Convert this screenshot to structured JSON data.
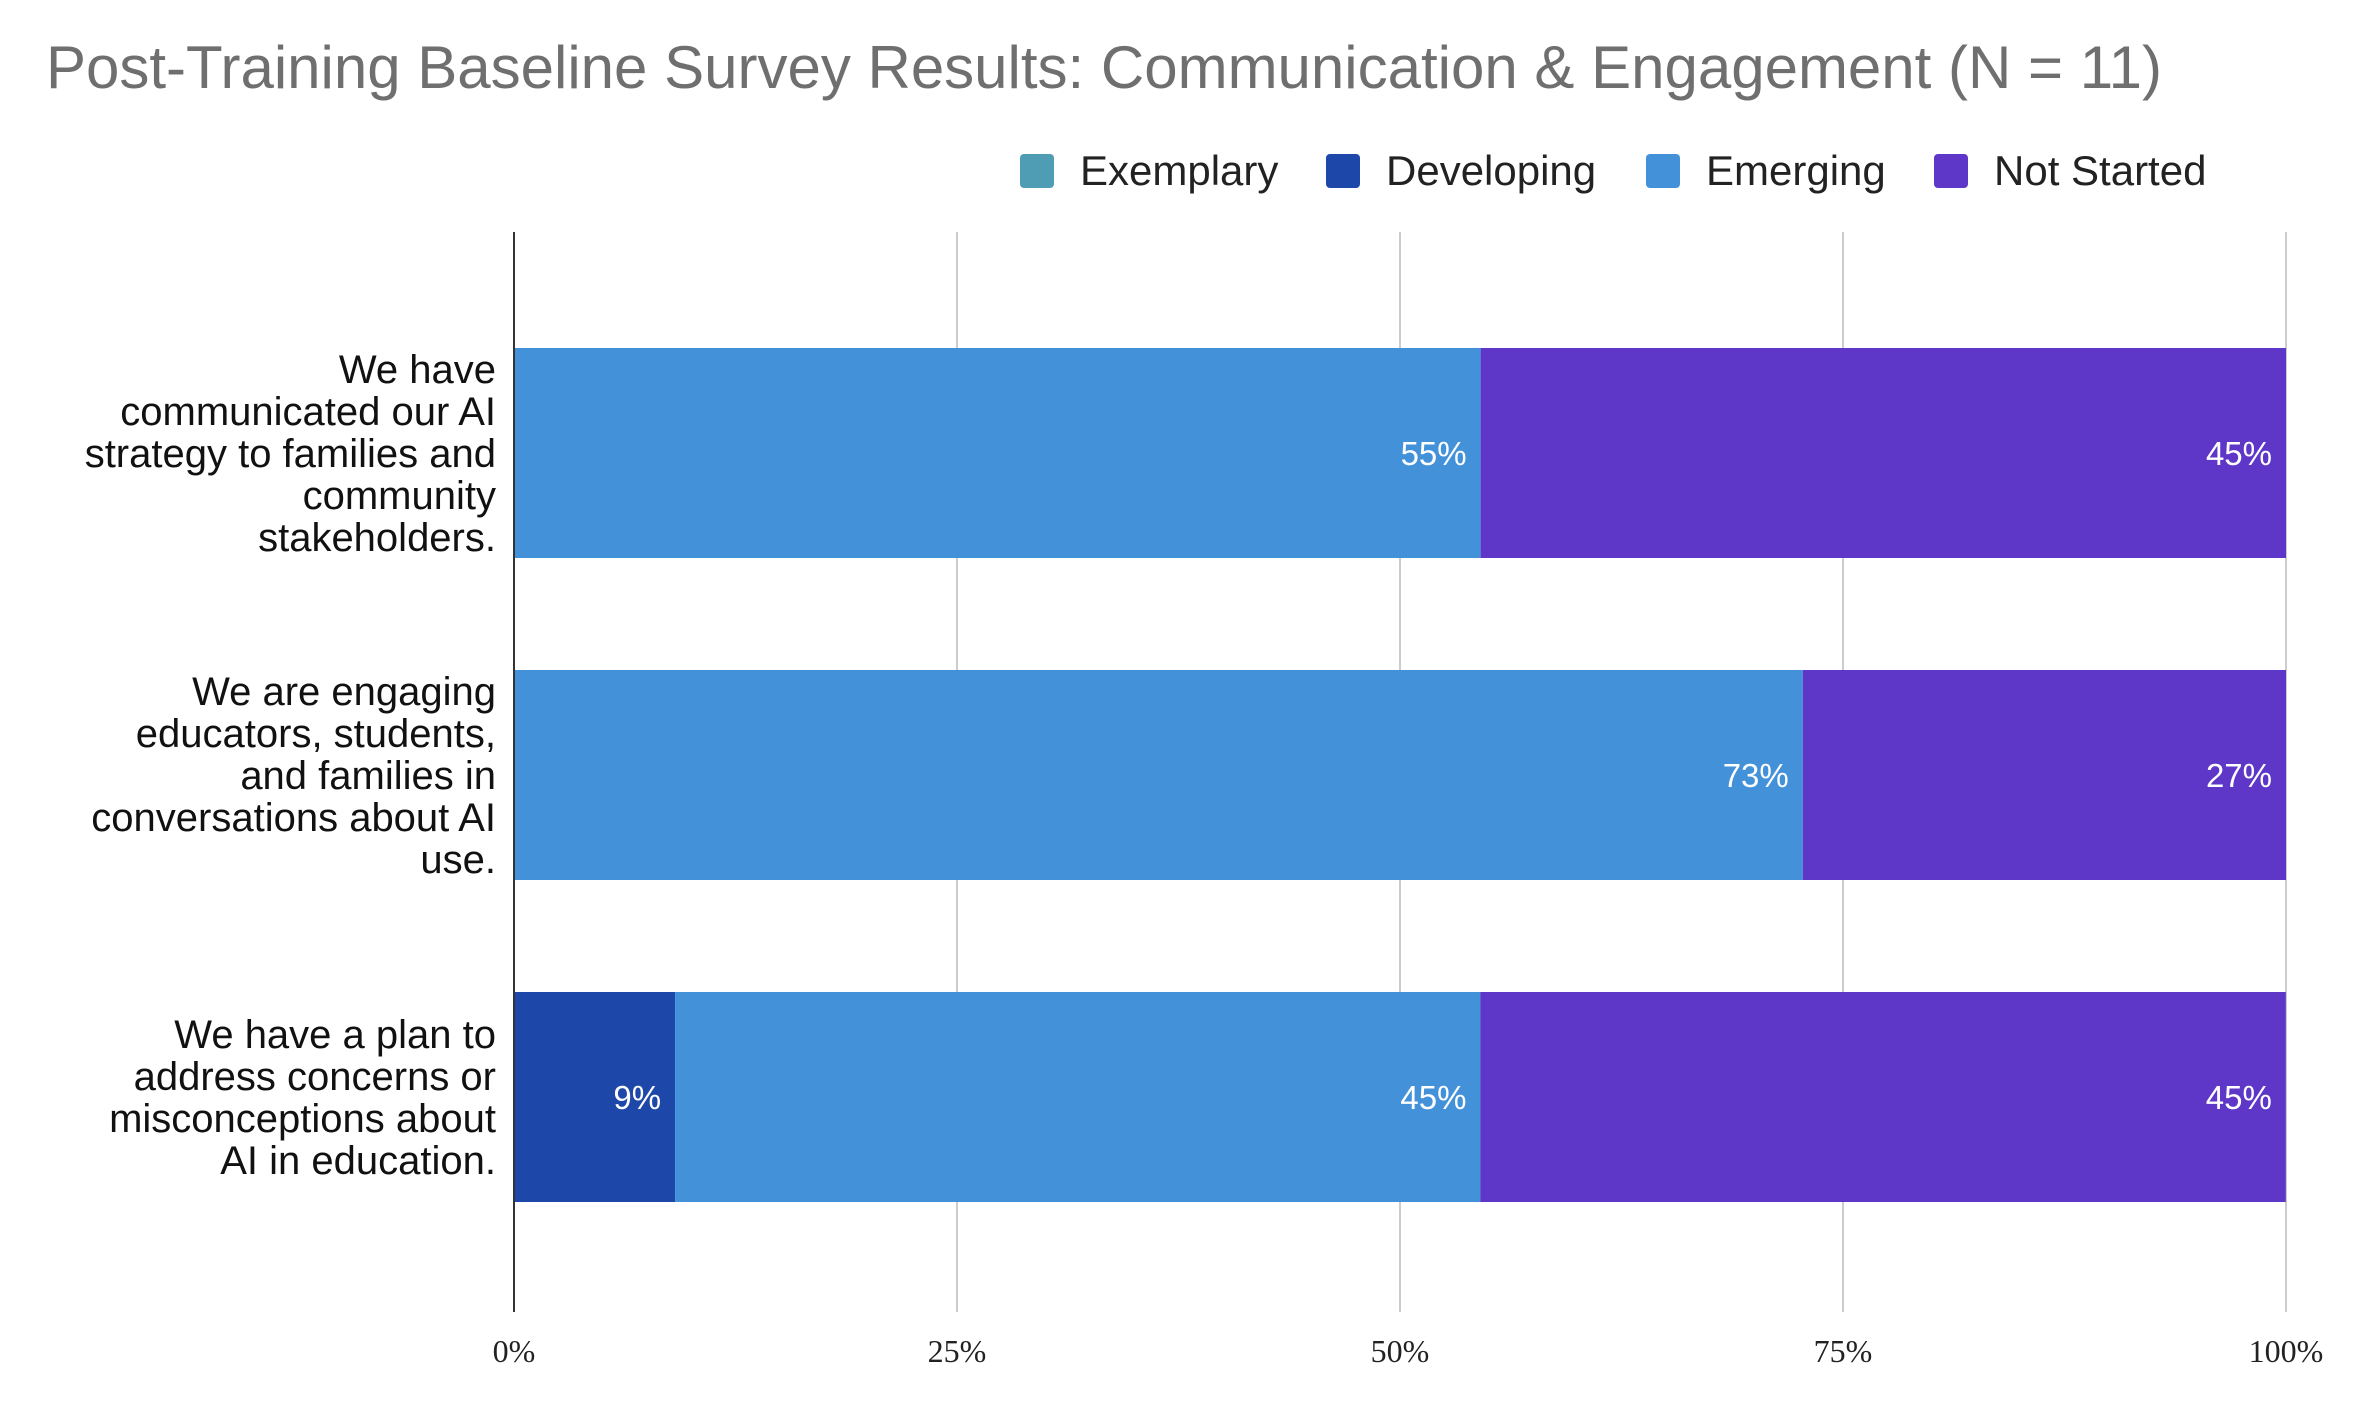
{
  "chart_data": {
    "type": "bar",
    "orientation": "horizontal",
    "stacked": true,
    "title": "Post-Training Baseline Survey Results: Communication & Engagement (N = 11)",
    "categories": [
      [
        "We have",
        "communicated our AI",
        "strategy to families and",
        "community",
        "stakeholders."
      ],
      [
        "We are engaging",
        "educators, students,",
        "and families in",
        "conversations about AI",
        "use."
      ],
      [
        "We have a plan to",
        "address concerns or",
        "misconceptions about",
        "AI in education."
      ]
    ],
    "series": [
      {
        "name": "Exemplary",
        "color": "#4f9db4",
        "values": [
          0,
          0,
          0
        ],
        "labels": [
          "",
          "",
          ""
        ]
      },
      {
        "name": "Developing",
        "color": "#1d47a8",
        "values": [
          0,
          0,
          9.09
        ],
        "labels": [
          "",
          "",
          "9%"
        ]
      },
      {
        "name": "Emerging",
        "color": "#4391d9",
        "values": [
          54.55,
          72.73,
          45.45
        ],
        "labels": [
          "55%",
          "73%",
          "45%"
        ]
      },
      {
        "name": "Not Started",
        "color": "#5e37c8",
        "values": [
          45.45,
          27.27,
          45.45
        ],
        "labels": [
          "45%",
          "27%",
          "45%"
        ]
      }
    ],
    "xlim": [
      0,
      100
    ],
    "xticks": [
      0,
      25,
      50,
      75,
      100
    ],
    "xtick_labels": [
      "0%",
      "25%",
      "50%",
      "75%",
      "100%"
    ],
    "grid": true,
    "legend_position": "top-right"
  }
}
